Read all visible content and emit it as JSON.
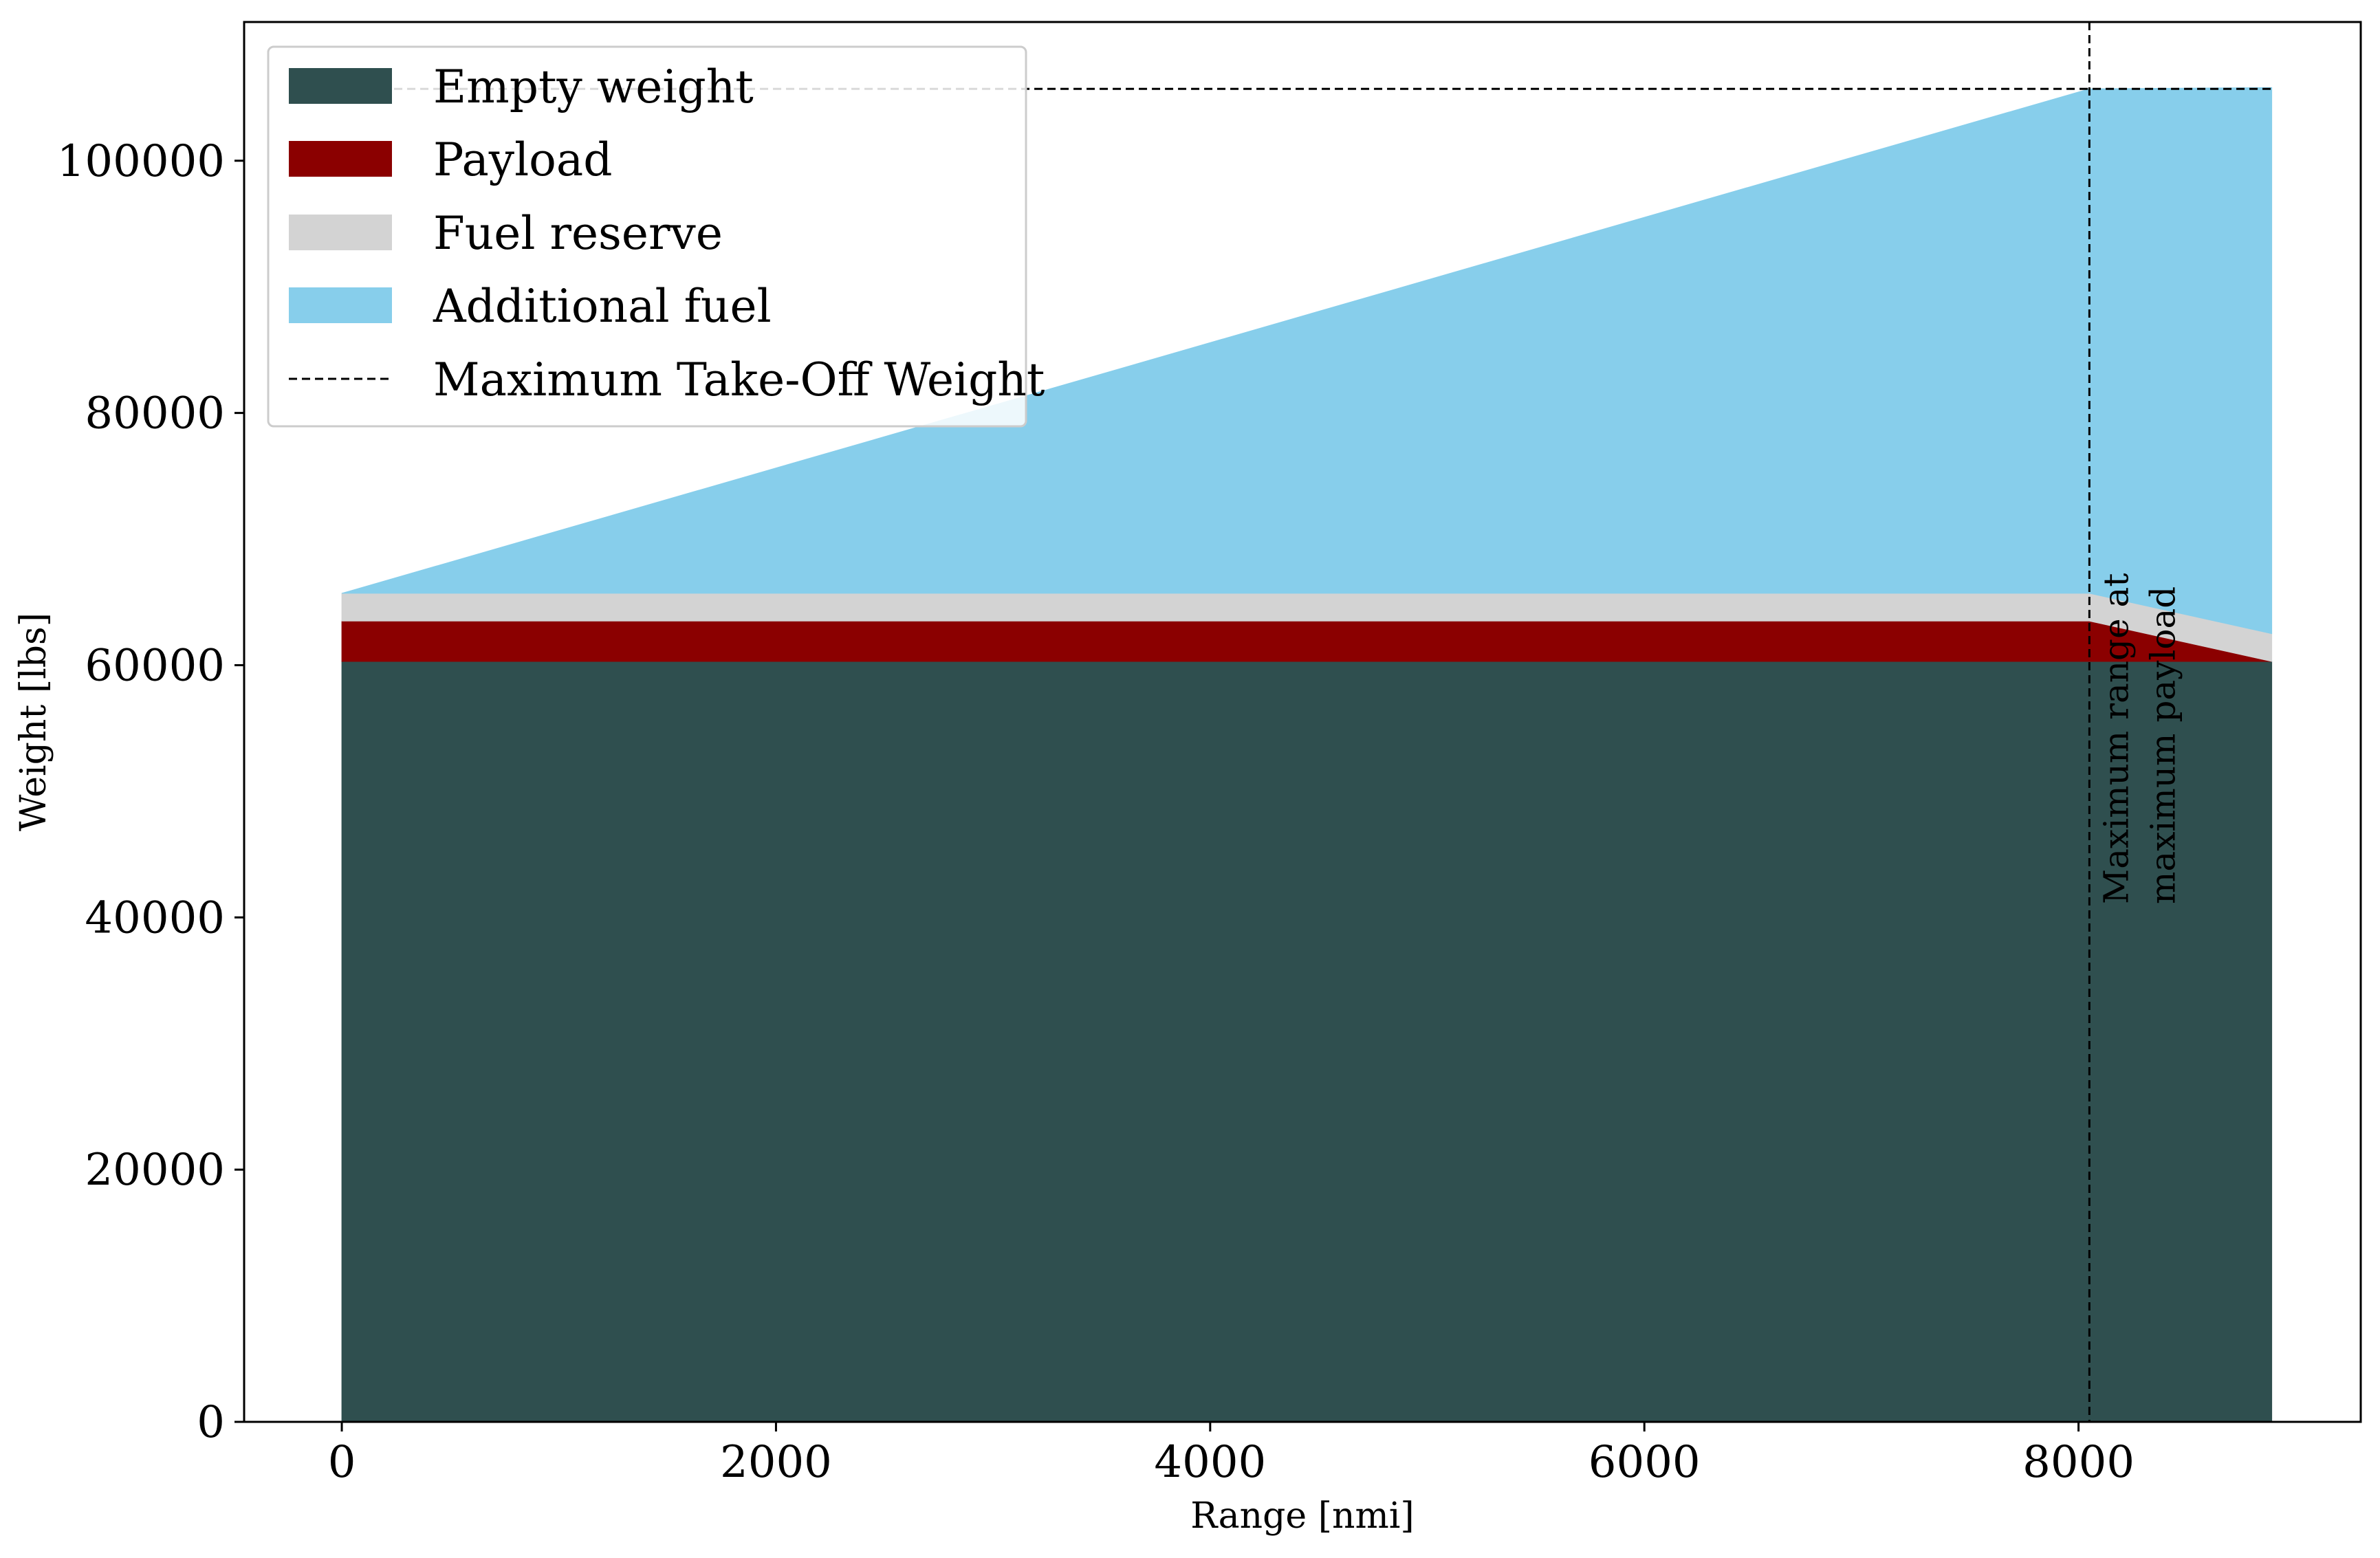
{
  "chart_data": {
    "type": "area",
    "title": "",
    "xlabel": "Range [nmi]",
    "ylabel": "Weight [lbs]",
    "xlim": [
      -450,
      9300
    ],
    "ylim": [
      0,
      111000
    ],
    "xticks": [
      0,
      2000,
      4000,
      6000,
      8000
    ],
    "yticks": [
      0,
      20000,
      40000,
      60000,
      80000,
      100000
    ],
    "grid": false,
    "legend_position": "top-left",
    "x": [
      0,
      8050,
      8890
    ],
    "series": [
      {
        "name": "Empty weight",
        "color": "#2f4f4f",
        "values": [
          60300,
          60300,
          60300
        ]
      },
      {
        "name": "Payload",
        "color": "#8b0000",
        "values": [
          3200,
          3200,
          0
        ]
      },
      {
        "name": "Fuel reserve",
        "color": "#d3d3d3",
        "values": [
          2200,
          2200,
          2200
        ]
      },
      {
        "name": "Additional fuel",
        "color": "#87ceeb",
        "values": [
          0,
          40000,
          43300
        ]
      }
    ],
    "mtow": {
      "name": "Maximum Take-Off Weight",
      "value": 105700,
      "x_range": [
        0,
        8890
      ],
      "color": "#000000"
    },
    "max_range_line": {
      "x": 8050,
      "label_line1": "Maximum range at",
      "label_line2": "maximum payload"
    }
  }
}
